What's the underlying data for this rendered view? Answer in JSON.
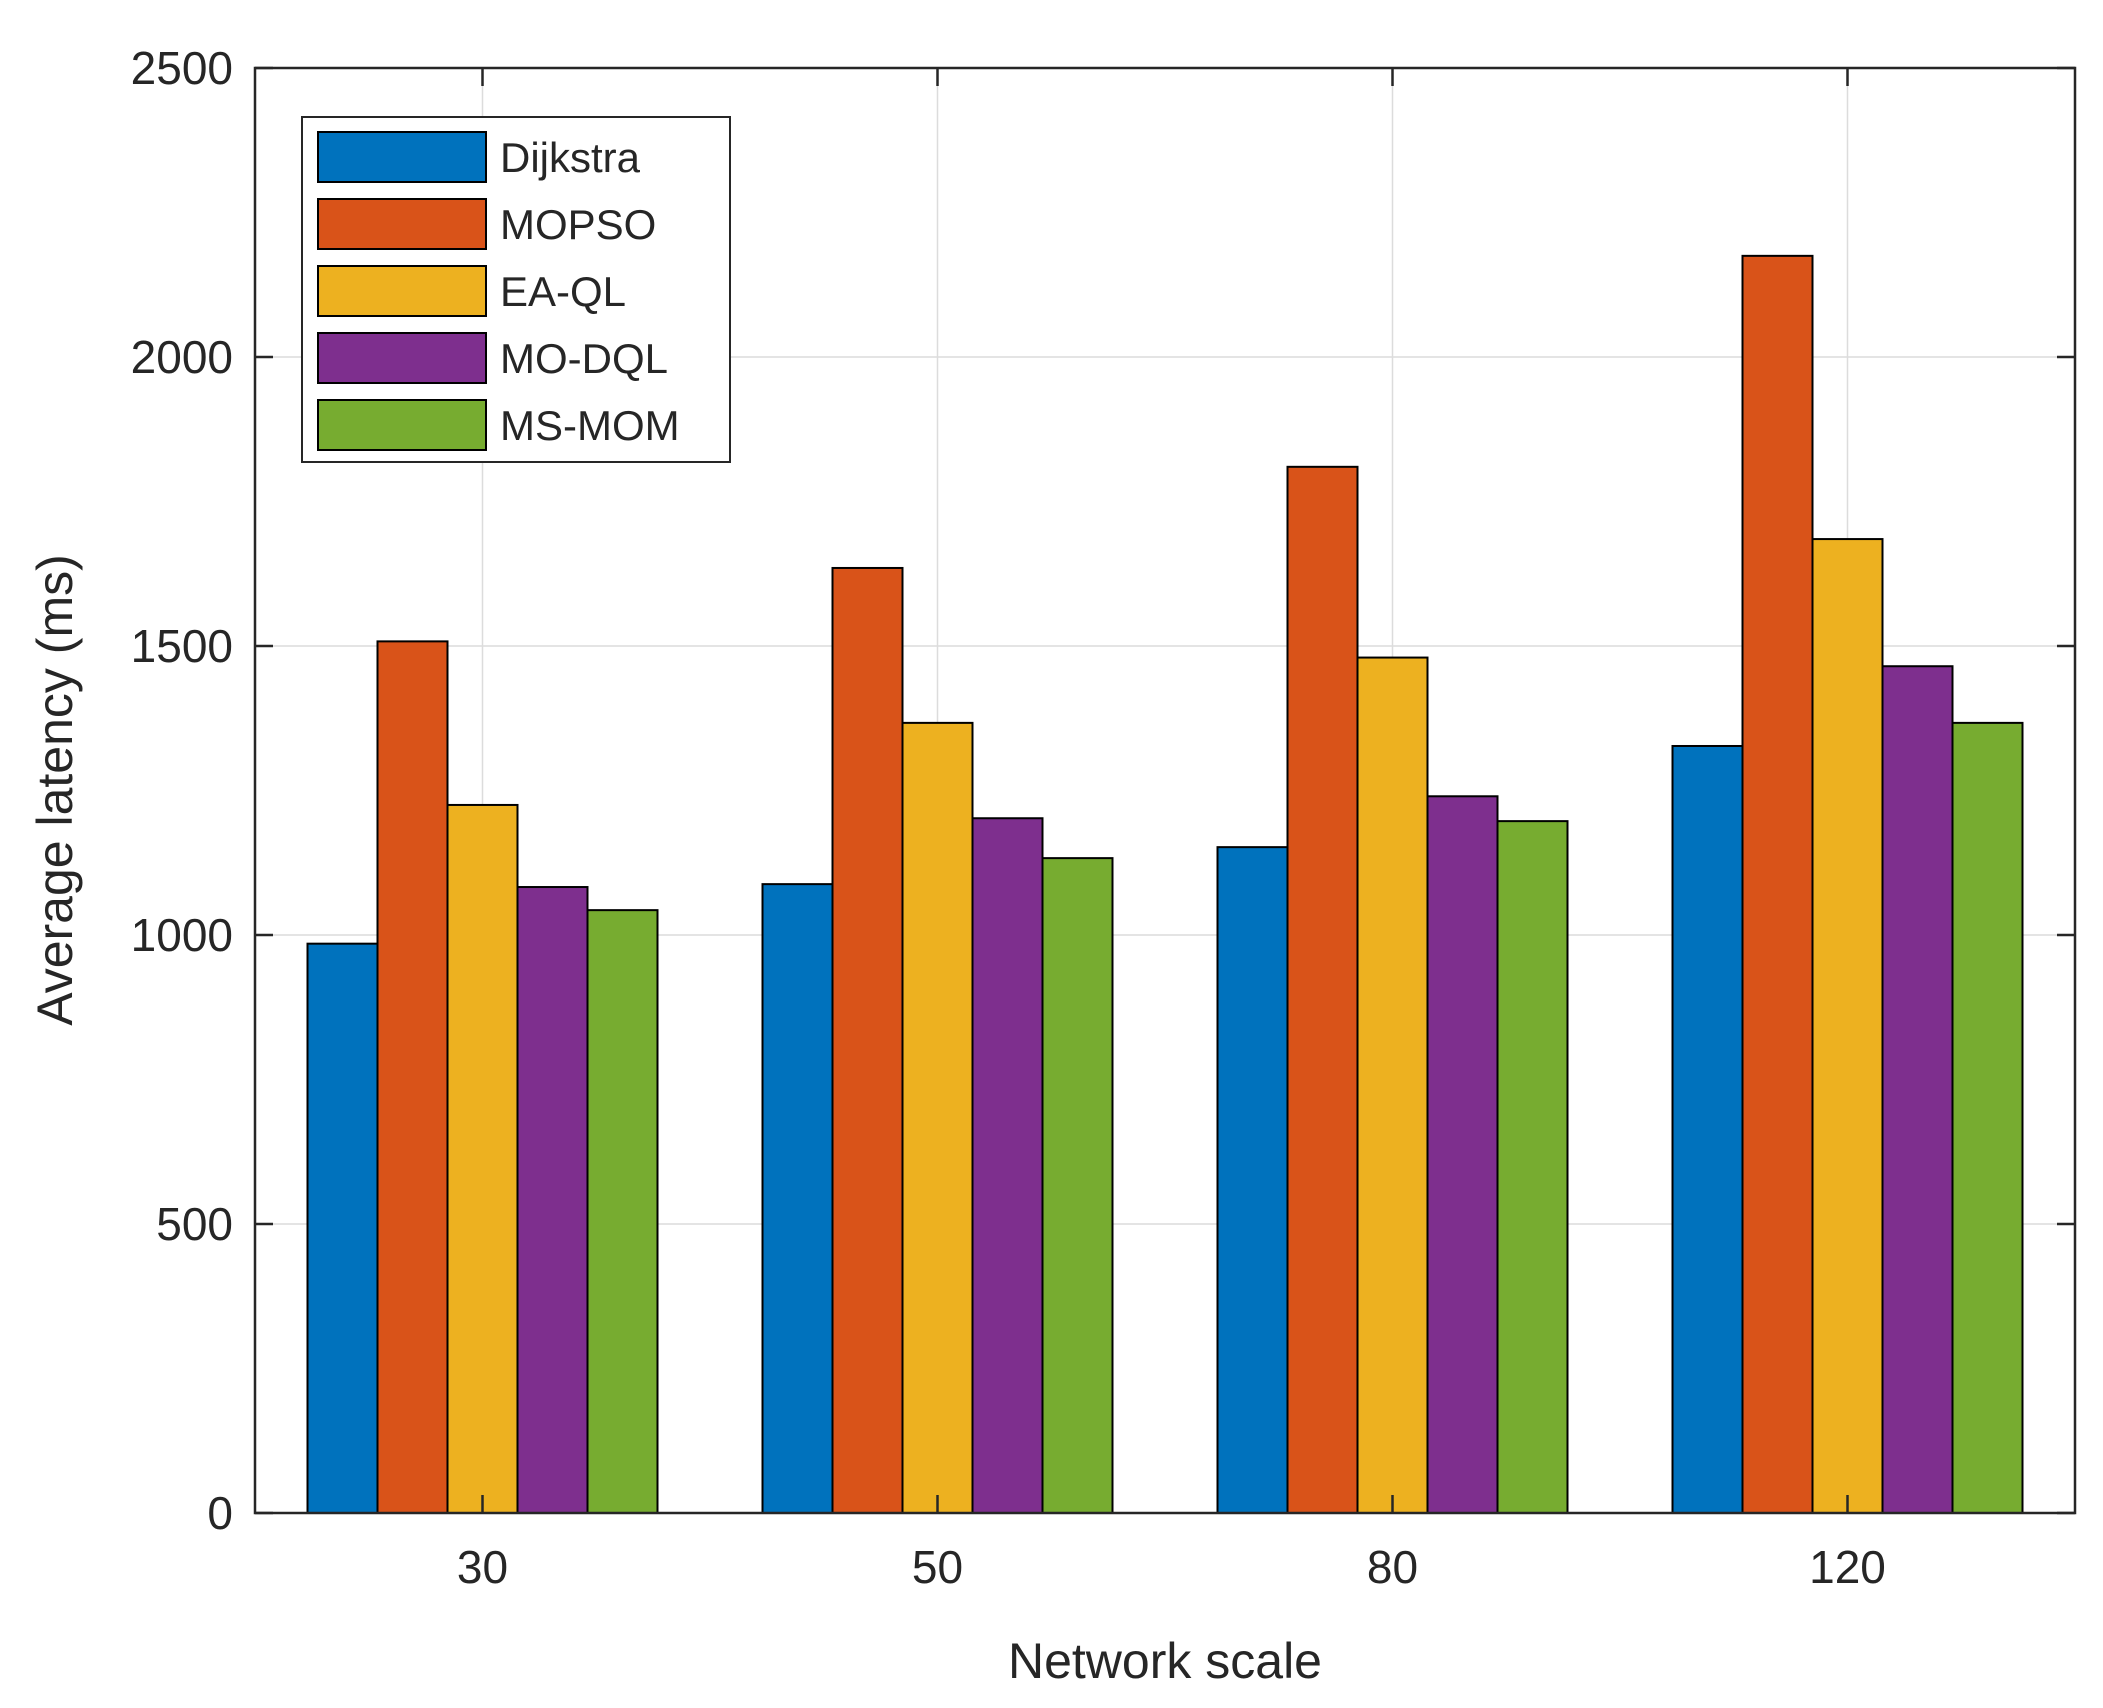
{
  "chart_data": {
    "type": "bar",
    "title": "",
    "xlabel": "Network scale",
    "ylabel": "Average latency (ms)",
    "categories": [
      "30",
      "50",
      "80",
      "120"
    ],
    "ylim": [
      0,
      2500
    ],
    "yticks": [
      0,
      500,
      1000,
      1500,
      2000,
      2500
    ],
    "grid": true,
    "legend_position": "top-left",
    "series": [
      {
        "name": "Dijkstra",
        "color": "#0072BD",
        "values": [
          985,
          1088,
          1152,
          1327
        ]
      },
      {
        "name": "MOPSO",
        "color": "#D95319",
        "values": [
          1508,
          1635,
          1810,
          2175
        ]
      },
      {
        "name": "EA-QL",
        "color": "#EDB120",
        "values": [
          1225,
          1367,
          1480,
          1685
        ]
      },
      {
        "name": "MO-DQL",
        "color": "#7E2F8E",
        "values": [
          1083,
          1202,
          1240,
          1465
        ]
      },
      {
        "name": "MS-MOM",
        "color": "#77AC30",
        "values": [
          1043,
          1133,
          1197,
          1367
        ]
      }
    ]
  }
}
